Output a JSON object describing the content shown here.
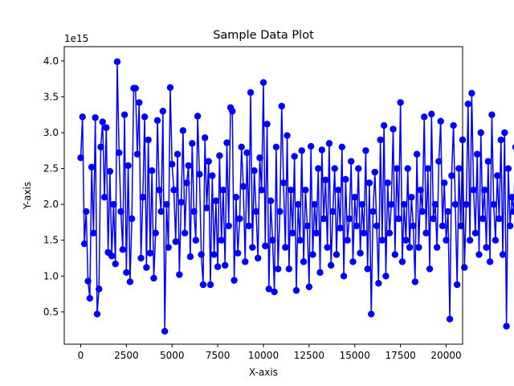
{
  "chart_data": {
    "type": "line",
    "title": "Sample Data Plot",
    "xlabel": "X-axis",
    "ylabel": "Y-axis",
    "y_offset_label": "1e15",
    "xlim": [
      -900,
      20900
    ],
    "ylim": [
      0.05,
      4.2
    ],
    "x_ticks": [
      0,
      2500,
      5000,
      7500,
      10000,
      12500,
      15000,
      17500,
      20000
    ],
    "x_tick_labels": [
      "0",
      "2500",
      "5000",
      "7500",
      "10000",
      "12500",
      "15000",
      "17500",
      "20000"
    ],
    "y_ticks": [
      0.5,
      1.0,
      1.5,
      2.0,
      2.5,
      3.0,
      3.5,
      4.0
    ],
    "y_tick_labels": [
      "0.5",
      "1.0",
      "1.5",
      "2.0",
      "2.5",
      "3.0",
      "3.5",
      "4.0"
    ],
    "grid": false,
    "legend": "none",
    "series_color": "#0000ff",
    "marker": "circle",
    "series": [
      {
        "x_start": 0,
        "x_step": 100,
        "values": [
          2.65,
          3.22,
          1.45,
          1.9,
          0.93,
          0.69,
          2.52,
          1.6,
          3.21,
          0.47,
          0.82,
          2.8,
          3.15,
          2.1,
          3.07,
          1.33,
          2.46,
          1.28,
          2.0,
          1.17,
          3.99,
          2.72,
          1.9,
          1.37,
          3.25,
          1.05,
          2.54,
          0.92,
          1.8,
          3.62,
          3.62,
          2.7,
          3.42,
          1.25,
          2.1,
          3.22,
          1.12,
          2.9,
          1.32,
          2.47,
          0.97,
          1.6,
          3.17,
          2.2,
          1.9,
          3.3,
          0.23,
          2.0,
          1.4,
          3.63,
          2.56,
          2.2,
          1.48,
          2.7,
          1.02,
          2.03,
          3.03,
          1.6,
          2.3,
          2.54,
          1.27,
          2.85,
          1.9,
          1.5,
          3.23,
          2.42,
          1.3,
          0.88,
          2.93,
          1.95,
          2.6,
          0.88,
          2.4,
          1.3,
          2.05,
          1.13,
          2.68,
          1.5,
          2.2,
          1.15,
          2.86,
          1.7,
          3.35,
          3.3,
          0.94,
          2.1,
          1.32,
          1.8,
          2.8,
          2.25,
          1.2,
          2.72,
          1.7,
          3.56,
          1.4,
          2.47,
          1.9,
          1.25,
          2.65,
          2.2,
          3.7,
          1.42,
          3.12,
          0.82,
          2.05,
          1.5,
          0.78,
          2.8,
          1.1,
          1.9,
          3.37,
          2.3,
          1.4,
          2.96,
          1.1,
          2.2,
          1.6,
          2.67,
          0.8,
          2.0,
          1.5,
          2.75,
          1.2,
          2.2,
          1.7,
          0.85,
          2.81,
          1.3,
          2.0,
          1.6,
          2.5,
          1.05,
          2.76,
          1.8,
          2.34,
          1.4,
          2.85,
          1.15,
          1.9,
          2.5,
          1.3,
          2.2,
          1.67,
          2.8,
          1.0,
          2.35,
          1.5,
          1.8,
          2.6,
          1.2,
          2.1,
          1.7,
          2.5,
          1.32,
          2.0,
          1.6,
          2.75,
          1.1,
          2.3,
          0.47,
          1.9,
          2.45,
          1.7,
          0.9,
          2.9,
          1.5,
          3.1,
          1.0,
          2.3,
          1.6,
          2.0,
          3.05,
          1.3,
          2.5,
          1.8,
          3.42,
          1.2,
          2.0,
          1.5,
          2.5,
          1.4,
          2.1,
          1.7,
          0.92,
          2.7,
          1.4,
          2.2,
          1.9,
          3.22,
          1.6,
          2.5,
          1.1,
          3.26,
          1.8,
          2.0,
          1.4,
          2.6,
          3.16,
          1.7,
          2.3,
          1.5,
          1.9,
          0.4,
          2.4,
          3.1,
          2.0,
          0.88,
          2.5,
          1.7,
          2.9,
          1.12,
          2.0,
          3.4,
          1.5,
          3.55,
          2.2,
          1.6,
          2.7,
          1.3,
          3.0,
          1.8,
          2.2,
          1.4,
          2.6,
          1.2,
          3.25,
          2.0,
          1.5,
          2.4,
          1.8,
          2.9,
          1.3,
          3.0,
          0.3,
          2.5,
          1.7,
          2.1,
          1.9,
          2.8,
          0.8,
          2.2,
          1.6,
          2.45,
          1.0,
          2.7,
          1.5,
          0.83,
          2.1,
          1.9,
          2.4,
          1.4,
          2.0,
          1.7,
          2.5,
          1.2,
          3.45,
          2.1,
          1.3,
          2.0,
          1.6,
          2.9,
          1.5,
          2.4,
          1.8,
          2.1,
          3.32,
          1.3,
          0.87,
          2.6,
          1.7,
          3.15,
          2.0,
          1.4,
          2.3,
          1.1,
          2.6,
          3.12,
          0.47,
          1.5,
          2.0,
          2.9,
          0.45,
          1.8,
          3.1,
          1.5,
          1.4,
          2.2,
          3.22,
          2.0,
          0.92,
          2.7,
          1.6,
          2.4,
          1.3,
          2.55,
          1.7,
          2.2,
          1.3,
          1.8,
          2.3,
          0.67,
          3.28,
          2.0,
          1.4,
          0.87,
          2.65,
          1.5,
          2.2,
          0.35,
          3.31,
          1.6,
          2.4,
          3.1,
          2.0,
          0.95,
          2.1,
          1.7,
          2.6,
          1.9,
          3.08,
          1.8,
          2.5,
          1.15,
          2.7,
          3.0,
          1.5,
          2.0,
          1.6,
          2.9,
          0.4,
          2.43,
          0.87
        ]
      }
    ]
  }
}
